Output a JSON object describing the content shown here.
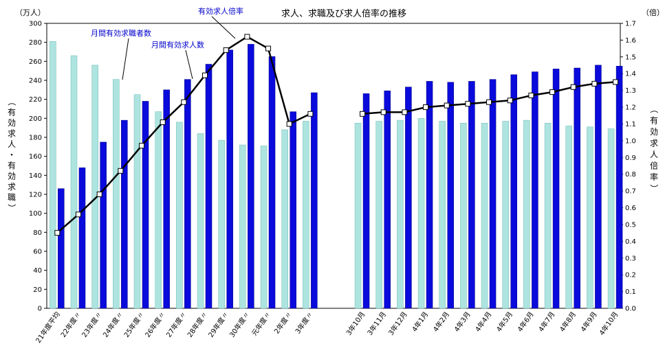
{
  "colors": {
    "seekers": "#aee4e0",
    "openings": "#0a0adc",
    "ratio_line": "#000000",
    "annotation": "#0000cc"
  },
  "chart_data": {
    "type": "bar",
    "title": "求人、求職及び求人倍率の推移",
    "left_unit": "（万人）",
    "right_unit": "（倍）",
    "left_axis_label": "（有効求人・有効求職）",
    "right_axis_label": "（有効求人倍率）",
    "ylim_left": [
      0,
      300
    ],
    "ylim_right": [
      0.0,
      1.7
    ],
    "left_ticks": [
      "0",
      "20",
      "40",
      "60",
      "80",
      "100",
      "120",
      "140",
      "160",
      "180",
      "200",
      "220",
      "240",
      "260",
      "280",
      "300"
    ],
    "right_ticks": [
      "0.0",
      "0.1",
      "0.2",
      "0.3",
      "0.4",
      "0.5",
      "0.6",
      "0.7",
      "0.8",
      "0.9",
      "1.0",
      "1.1",
      "1.2",
      "1.3",
      "1.4",
      "1.5",
      "1.6",
      "1.7"
    ],
    "categories": [
      "21年度平均",
      "22年度〃",
      "23年度〃",
      "24年度〃",
      "25年度〃",
      "26年度〃",
      "27年度〃",
      "28年度〃",
      "29年度〃",
      "30年度〃",
      "元年度〃",
      "2年度〃",
      "3年度〃",
      "3年10月",
      "3年11月",
      "3年12月",
      "4年1月",
      "4年2月",
      "4年3月",
      "4年4月",
      "4年5月",
      "4年6月",
      "4年7月",
      "4年8月",
      "4年9月",
      "4年10月"
    ],
    "series": [
      {
        "name": "月間有効求職者数",
        "axis": "left",
        "values": [
          281,
          266,
          256,
          241,
          225,
          207,
          196,
          184,
          177,
          172,
          171,
          188,
          197,
          195,
          197,
          198,
          200,
          197,
          195,
          195,
          197,
          198,
          195,
          192,
          191,
          189
        ]
      },
      {
        "name": "月間有効求人数",
        "axis": "left",
        "values": [
          126,
          148,
          175,
          198,
          218,
          230,
          241,
          257,
          272,
          278,
          265,
          207,
          227,
          226,
          229,
          233,
          239,
          238,
          239,
          241,
          246,
          249,
          252,
          253,
          256,
          255
        ]
      },
      {
        "name": "有効求人倍率",
        "axis": "right",
        "values": [
          0.45,
          0.56,
          0.68,
          0.82,
          0.97,
          1.11,
          1.23,
          1.39,
          1.54,
          1.62,
          1.55,
          1.1,
          1.16,
          1.16,
          1.17,
          1.17,
          1.2,
          1.21,
          1.22,
          1.23,
          1.24,
          1.27,
          1.29,
          1.32,
          1.34,
          1.35
        ]
      }
    ],
    "annotations": [
      "有効求人倍率",
      "月間有効求職者数",
      "月間有効求人数"
    ]
  }
}
